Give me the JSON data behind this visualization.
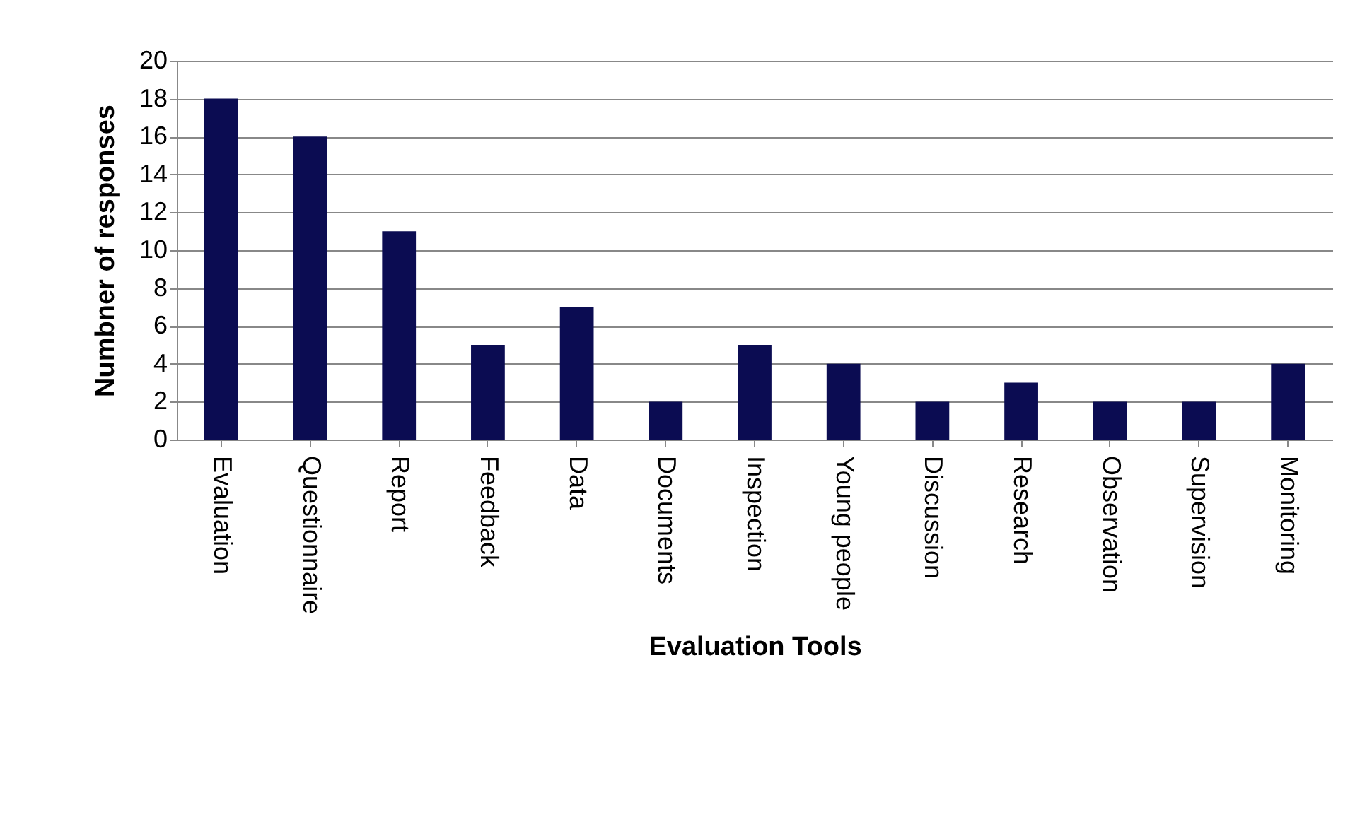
{
  "chart_data": {
    "type": "bar",
    "xlabel": "Evaluation Tools",
    "ylabel": "Numbner of responses",
    "categories": [
      "Evaluation",
      "Questionnaire",
      "Report",
      "Feedback",
      "Data",
      "Documents",
      "Inspection",
      "Young people",
      "Discussion",
      "Research",
      "Observation",
      "Supervision",
      "Monitoring"
    ],
    "values": [
      18,
      16,
      11,
      5,
      7,
      2,
      5,
      4,
      2,
      3,
      2,
      2,
      4
    ],
    "color": "#0b0c52",
    "ylim": [
      0,
      20
    ],
    "yticks": [
      0,
      2,
      4,
      6,
      8,
      10,
      12,
      14,
      16,
      18,
      20
    ],
    "grid": "y"
  }
}
